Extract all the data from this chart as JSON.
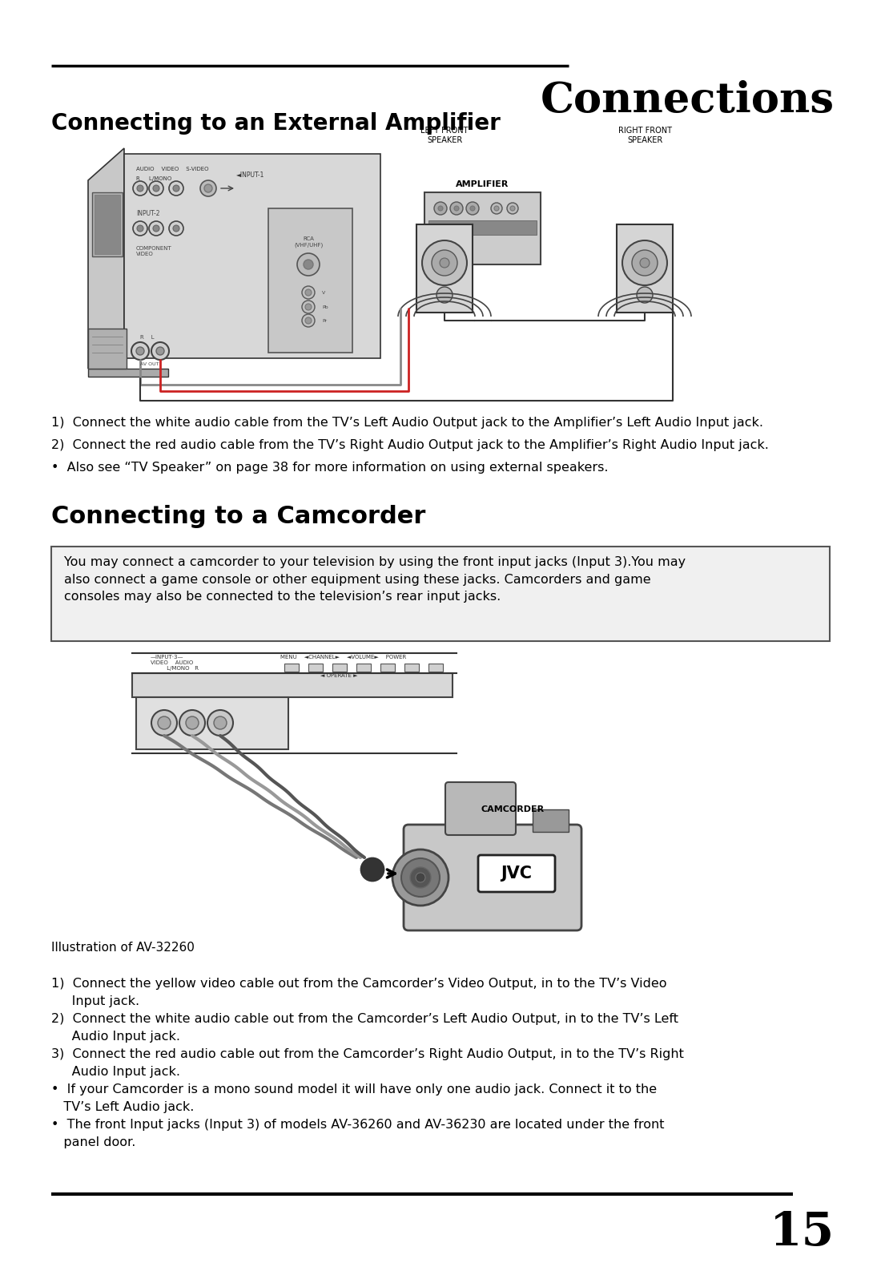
{
  "page_title": "Connections",
  "section1_title": "Connecting to an External Amplifier",
  "section2_title": "Connecting to a Camcorder",
  "page_number": "15",
  "bg_color": "#ffffff",
  "text_color": "#000000",
  "box_text": "You may connect a camcorder to your television by using the front input jacks (Input 3).You may\nalso connect a game console or other equipment using these jacks. Camcorders and game\nconsoles may also be connected to the television’s rear input jacks.",
  "amp_note1": "1)  Connect the white audio cable from the TV’s Left Audio Output jack to the Amplifier’s Left Audio Input jack.",
  "amp_note2": "2)  Connect the red audio cable from the TV’s Right Audio Output jack to the Amplifier’s Right Audio Input jack.",
  "amp_note3": "•  Also see “TV Speaker” on page 38 for more information on using external speakers.",
  "cam_note1a": "1)  Connect the yellow video cable out from the Camcorder’s Video Output, in to the TV’s Video",
  "cam_note1b": "     Input jack.",
  "cam_note2a": "2)  Connect the white audio cable out from the Camcorder’s Left Audio Output, in to the TV’s Left",
  "cam_note2b": "     Audio Input jack.",
  "cam_note3a": "3)  Connect the red audio cable out from the Camcorder’s Right Audio Output, in to the TV’s Right",
  "cam_note3b": "     Audio Input jack.",
  "cam_note4a": "•  If your Camcorder is a mono sound model it will have only one audio jack. Connect it to the",
  "cam_note4b": "   TV’s Left Audio jack.",
  "cam_note5a": "•  The front Input jacks (Input 3) of models AV-36260 and AV-36230 are located under the front",
  "cam_note5b": "   panel door.",
  "illustration_label": "Illustration of AV-32260",
  "label_left_front": "LEFT FRONT\nSPEAKER",
  "label_right_front": "RIGHT FRONT\nSPEAKER",
  "label_amplifier": "AMPLIFIER",
  "label_camcorder": "CAMCORDER"
}
